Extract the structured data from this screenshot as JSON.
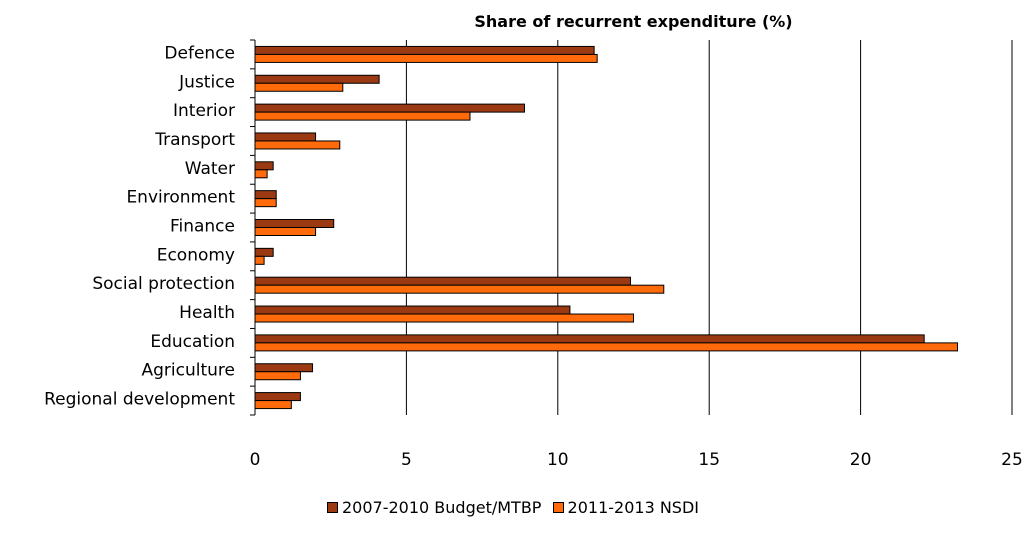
{
  "chart_data": {
    "type": "bar",
    "orientation": "horizontal",
    "title": "Share of recurrent expenditure (%)",
    "xlabel": "",
    "ylabel": "",
    "xlim": [
      0,
      25
    ],
    "xticks": [
      0,
      5,
      10,
      15,
      20,
      25
    ],
    "grid": "vertical",
    "legend_position": "bottom",
    "categories": [
      "Defence",
      "Justice",
      "Interior",
      "Transport",
      "Water",
      "Environment",
      "Finance",
      "Economy",
      "Social protection",
      "Health",
      "Education",
      "Agriculture",
      "Regional development"
    ],
    "series": [
      {
        "name": "2007-2010 Budget/MTBP",
        "color": "#9b3a12",
        "values": [
          11.2,
          4.1,
          8.9,
          2.0,
          0.6,
          0.7,
          2.6,
          0.6,
          12.4,
          10.4,
          22.1,
          1.9,
          1.5
        ]
      },
      {
        "name": "2011-2013 NSDI",
        "color": "#ff6a0a",
        "values": [
          11.3,
          2.9,
          7.1,
          2.8,
          0.4,
          0.7,
          2.0,
          0.3,
          13.5,
          12.5,
          23.2,
          1.5,
          1.2
        ]
      }
    ]
  }
}
